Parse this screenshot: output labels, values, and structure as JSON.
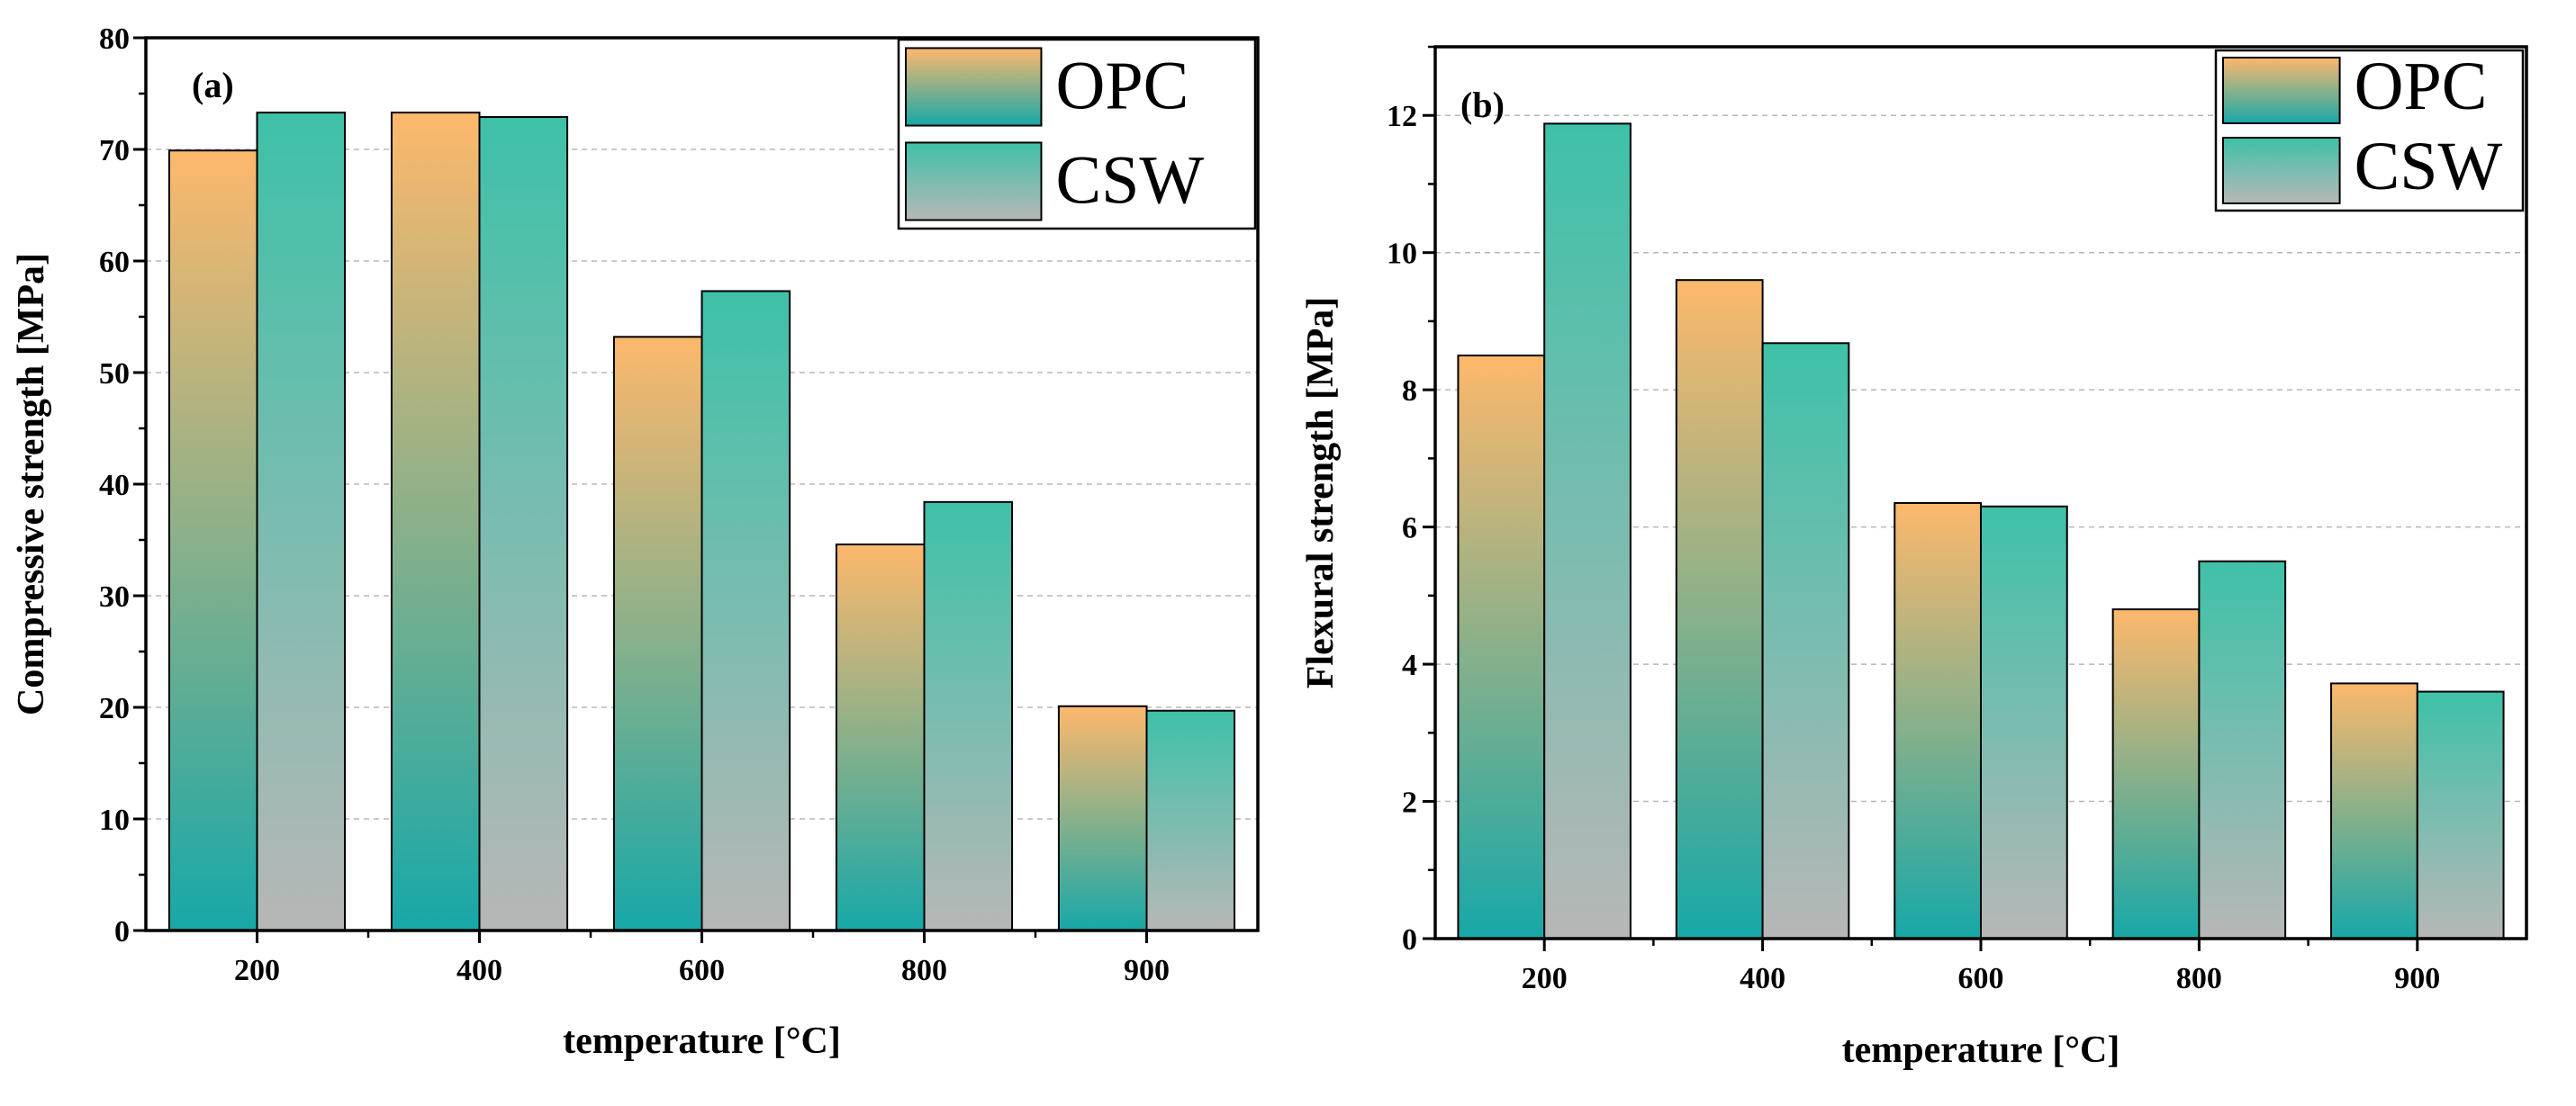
{
  "colors": {
    "opc_top": "#fdb86c",
    "opc_bottom": "#17a8a8",
    "csw_top": "#3ec1a8",
    "csw_bottom": "#b7b7b7",
    "grid": "#b8b8b8"
  },
  "chart_data": [
    {
      "type": "bar",
      "panel": "(a)",
      "xlabel": "temperature [°C]",
      "ylabel": "Compressive strength [MPa]",
      "categories": [
        "200",
        "400",
        "600",
        "800",
        "900"
      ],
      "series": [
        {
          "name": "OPC",
          "values": [
            69.9,
            73.3,
            53.2,
            34.6,
            20.1
          ]
        },
        {
          "name": "CSW",
          "values": [
            73.3,
            72.9,
            57.3,
            38.4,
            19.7
          ]
        }
      ],
      "ylim": [
        0,
        80
      ],
      "yticks": [
        0,
        10,
        20,
        30,
        40,
        50,
        60,
        70,
        80
      ],
      "ytick_labels": [
        "0",
        "10",
        "20",
        "30",
        "40",
        "50",
        "60",
        "70",
        "80"
      ],
      "legend": [
        "OPC",
        "CSW"
      ],
      "legend_position": "top-right",
      "grid": true
    },
    {
      "type": "bar",
      "panel": "(b)",
      "xlabel": "temperature [°C]",
      "ylabel": "Flexural strength [MPa]",
      "categories": [
        "200",
        "400",
        "600",
        "800",
        "900"
      ],
      "series": [
        {
          "name": "OPC",
          "values": [
            8.5,
            9.6,
            6.35,
            4.8,
            3.72
          ]
        },
        {
          "name": "CSW",
          "values": [
            11.88,
            8.68,
            6.3,
            5.5,
            3.6
          ]
        }
      ],
      "ylim": [
        0,
        13
      ],
      "yticks": [
        0,
        2,
        4,
        6,
        8,
        10,
        12
      ],
      "ytick_labels": [
        "0",
        "2",
        "4",
        "6",
        "8",
        "10",
        "12"
      ],
      "legend": [
        "OPC",
        "CSW"
      ],
      "legend_position": "top-right",
      "grid": true
    }
  ]
}
